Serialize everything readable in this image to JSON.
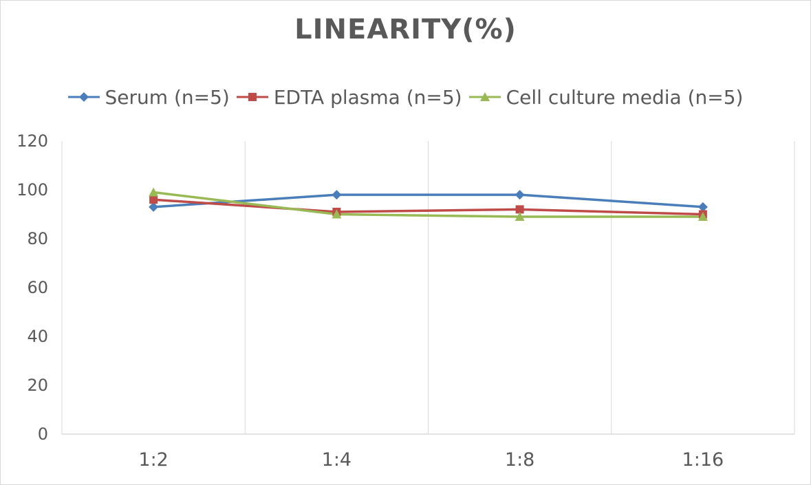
{
  "chart_data": {
    "type": "line",
    "title": "LINEARITY(%)",
    "xlabel": "",
    "ylabel": "",
    "categories": [
      "1:2",
      "1:4",
      "1:8",
      "1:16"
    ],
    "ylim": [
      0,
      120
    ],
    "yticks": [
      0,
      20,
      40,
      60,
      80,
      100,
      120
    ],
    "grid": "vertical",
    "legend_position": "top",
    "series": [
      {
        "name": "Serum (n=5)",
        "color": "#4a7ebb",
        "marker": "diamond",
        "values": [
          93,
          98,
          98,
          93
        ]
      },
      {
        "name": "EDTA plasma (n=5)",
        "color": "#be4b48",
        "marker": "square",
        "values": [
          96,
          91,
          92,
          90
        ]
      },
      {
        "name": "Cell culture media (n=5)",
        "color": "#98b954",
        "marker": "triangle",
        "values": [
          99,
          90,
          89,
          89
        ]
      }
    ]
  }
}
